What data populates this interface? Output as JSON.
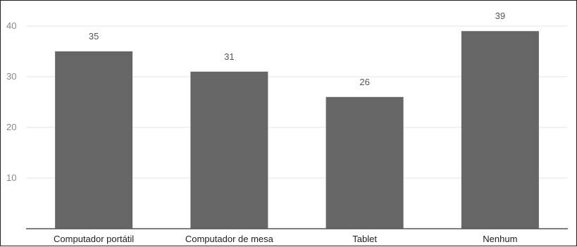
{
  "chart_data": {
    "type": "bar",
    "categories": [
      "Computador portátil",
      "Computador de mesa",
      "Tablet",
      "Nenhum"
    ],
    "values": [
      35,
      31,
      26,
      39
    ],
    "title": "",
    "xlabel": "",
    "ylabel": "",
    "ylim": [
      0,
      40
    ],
    "yticks": [
      10,
      20,
      30,
      40
    ],
    "grid": true,
    "legend": "none",
    "bar_color": "#666666",
    "data_labels": true
  }
}
